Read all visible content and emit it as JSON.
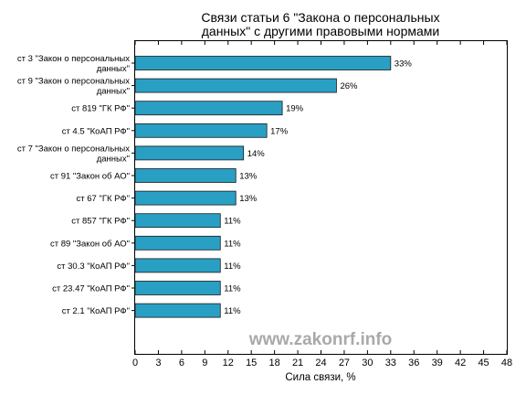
{
  "chart_data": {
    "type": "bar",
    "orientation": "horizontal",
    "title_lines": [
      "Связи статьи 6 \"Закона о персональных",
      "данных\" с другими правовыми нормами"
    ],
    "xlabel": "Сила связи, %",
    "ylabel": "",
    "xlim": [
      0,
      48
    ],
    "x_ticks": [
      0,
      3,
      6,
      9,
      12,
      15,
      18,
      21,
      24,
      27,
      30,
      33,
      36,
      39,
      42,
      45,
      48
    ],
    "grid": false,
    "bar_color": "#2a9fc4",
    "categories": [
      {
        "lines": [
          "ст 3 \"Закон о персональных",
          "данных\""
        ]
      },
      {
        "lines": [
          "ст 9 \"Закон о персональных",
          "данных\""
        ]
      },
      {
        "lines": [
          "ст 819 \"ГК РФ\""
        ]
      },
      {
        "lines": [
          "ст 4.5 \"КоАП РФ\""
        ]
      },
      {
        "lines": [
          "ст 7 \"Закон о персональных",
          "данных\""
        ]
      },
      {
        "lines": [
          "ст 91 \"Закон об АО\""
        ]
      },
      {
        "lines": [
          "ст 67 \"ГК РФ\""
        ]
      },
      {
        "lines": [
          "ст 857 \"ГК РФ\""
        ]
      },
      {
        "lines": [
          "ст 89 \"Закон об АО\""
        ]
      },
      {
        "lines": [
          "ст 30.3 \"КоАП РФ\""
        ]
      },
      {
        "lines": [
          "ст 23.47 \"КоАП РФ\""
        ]
      },
      {
        "lines": [
          "ст 2.1 \"КоАП РФ\""
        ]
      }
    ],
    "values": [
      33,
      26,
      19,
      17,
      14,
      13,
      13,
      11,
      11,
      11,
      11,
      11
    ],
    "value_labels": [
      "33%",
      "26%",
      "19%",
      "17%",
      "14%",
      "13%",
      "13%",
      "11%",
      "11%",
      "11%",
      "11%",
      "11%"
    ]
  },
  "watermark": "www.zakonrf.info"
}
